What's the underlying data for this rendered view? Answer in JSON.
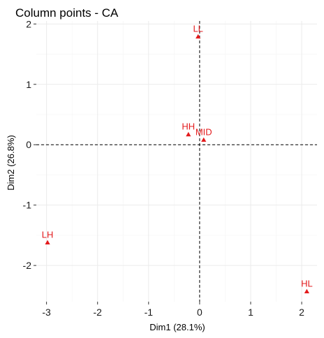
{
  "chart_data": {
    "type": "scatter",
    "title": "Column points - CA",
    "xlabel": "Dim1 (28.1%)",
    "ylabel": "Dim2 (26.8%)",
    "xlim": [
      -3.2,
      2.3
    ],
    "ylim": [
      -2.6,
      2.05
    ],
    "x_ticks": [
      -3,
      -2,
      -1,
      0,
      1,
      2
    ],
    "y_ticks": [
      -2,
      -1,
      0,
      1,
      2
    ],
    "grid": true,
    "reference_lines": {
      "x": 0,
      "y": 0,
      "style": "dashed"
    },
    "marker": "triangle",
    "point_color": "#e31a1c",
    "points": [
      {
        "label": "LL",
        "x": -0.03,
        "y": 1.79
      },
      {
        "label": "HH",
        "x": -0.22,
        "y": 0.17
      },
      {
        "label": "MID",
        "x": 0.08,
        "y": 0.08
      },
      {
        "label": "LH",
        "x": -2.98,
        "y": -1.62
      },
      {
        "label": "HL",
        "x": 2.1,
        "y": -2.43
      }
    ]
  }
}
